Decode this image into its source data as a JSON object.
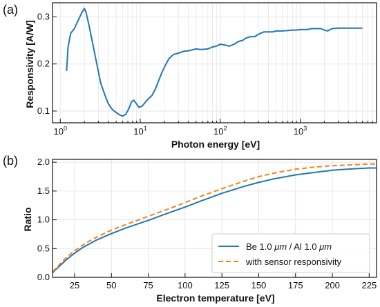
{
  "chart_data": [
    {
      "panel_label": "(a)",
      "type": "line",
      "xlabel": "Photon energy [eV]",
      "ylabel": "Responsivity [A/W]",
      "xscale": "log",
      "xlim": [
        0.8,
        9000
      ],
      "ylim": [
        0.075,
        0.33
      ],
      "grid": true,
      "x_ticks": [
        {
          "value": 1,
          "base": "10",
          "exp": "0"
        },
        {
          "value": 10,
          "base": "10",
          "exp": "1"
        },
        {
          "value": 100,
          "base": "10",
          "exp": "2"
        },
        {
          "value": 1000,
          "base": "10",
          "exp": "3"
        }
      ],
      "y_ticks": [
        {
          "value": 0.1,
          "label": "0.1"
        },
        {
          "value": 0.2,
          "label": "0.2"
        },
        {
          "value": 0.3,
          "label": "0.3"
        }
      ],
      "series": [
        {
          "color": "#1f77b4",
          "style": "solid",
          "x": [
            1.2,
            1.25,
            1.35,
            1.5,
            1.7,
            1.85,
            2.0,
            2.1,
            2.3,
            2.6,
            2.9,
            3.2,
            3.6,
            4.0,
            4.5,
            5.0,
            5.5,
            6.0,
            6.6,
            7.2,
            7.8,
            8.3,
            9.0,
            9.6,
            10.5,
            11.5,
            12.5,
            14.0,
            15.5,
            17.0,
            19.0,
            21.0,
            23.0,
            26.0,
            30.0,
            35.0,
            40.0,
            45.0,
            50.0,
            55.0,
            60.0,
            70.0,
            80.0,
            90.0,
            100.0,
            115.0,
            130.0,
            150.0,
            170.0,
            190.0,
            210.0,
            240.0,
            270.0,
            300.0,
            350.0,
            400.0,
            450.0,
            500.0,
            600.0,
            700.0,
            800.0,
            900.0,
            1000.0,
            1200.0,
            1400.0,
            1600.0,
            1800.0,
            2000.0,
            2200.0,
            2500.0,
            3000.0,
            4000.0,
            5000.0,
            6000.0
          ],
          "y": [
            0.185,
            0.235,
            0.265,
            0.275,
            0.295,
            0.308,
            0.318,
            0.31,
            0.28,
            0.235,
            0.195,
            0.16,
            0.135,
            0.115,
            0.103,
            0.097,
            0.092,
            0.089,
            0.093,
            0.105,
            0.12,
            0.123,
            0.115,
            0.108,
            0.11,
            0.118,
            0.125,
            0.133,
            0.147,
            0.165,
            0.185,
            0.2,
            0.212,
            0.22,
            0.223,
            0.227,
            0.228,
            0.23,
            0.232,
            0.231,
            0.231,
            0.232,
            0.236,
            0.238,
            0.242,
            0.24,
            0.238,
            0.242,
            0.248,
            0.25,
            0.255,
            0.258,
            0.258,
            0.263,
            0.268,
            0.268,
            0.268,
            0.27,
            0.27,
            0.271,
            0.272,
            0.272,
            0.273,
            0.273,
            0.275,
            0.275,
            0.275,
            0.272,
            0.27,
            0.275,
            0.276,
            0.276,
            0.276,
            0.276
          ]
        }
      ]
    },
    {
      "panel_label": "(b)",
      "type": "line",
      "xlabel": "Electron temperature [eV]",
      "ylabel": "Ratio",
      "xlim": [
        10,
        230
      ],
      "ylim": [
        0,
        2.05
      ],
      "grid": true,
      "legend_position": "bottom-right",
      "x_ticks": [
        {
          "value": 25,
          "label": "25"
        },
        {
          "value": 50,
          "label": "50"
        },
        {
          "value": 75,
          "label": "75"
        },
        {
          "value": 100,
          "label": "100"
        },
        {
          "value": 125,
          "label": "125"
        },
        {
          "value": 150,
          "label": "150"
        },
        {
          "value": 175,
          "label": "175"
        },
        {
          "value": 200,
          "label": "200"
        },
        {
          "value": 225,
          "label": "225"
        }
      ],
      "y_ticks": [
        {
          "value": 0.0,
          "label": "0.0"
        },
        {
          "value": 0.5,
          "label": "0.5"
        },
        {
          "value": 1.0,
          "label": "1.0"
        },
        {
          "value": 1.5,
          "label": "1.5"
        },
        {
          "value": 2.0,
          "label": "2.0"
        }
      ],
      "series": [
        {
          "legend_parts": [
            "Be 1.0 ",
            "μm",
            " / Al 1.0 ",
            "μm"
          ],
          "color": "#1f77b4",
          "style": "solid",
          "x": [
            10,
            12,
            15,
            20,
            25,
            30,
            35,
            40,
            50,
            60,
            75,
            90,
            100,
            110,
            125,
            140,
            150,
            160,
            175,
            190,
            200,
            210,
            225,
            230
          ],
          "y": [
            0.08,
            0.13,
            0.2,
            0.32,
            0.42,
            0.51,
            0.58,
            0.65,
            0.76,
            0.86,
            0.99,
            1.13,
            1.22,
            1.32,
            1.46,
            1.58,
            1.65,
            1.71,
            1.78,
            1.83,
            1.86,
            1.88,
            1.9,
            1.9
          ]
        },
        {
          "legend_parts": [
            "with sensor responsivity"
          ],
          "color": "#ff7f0e",
          "style": "dashed",
          "x": [
            10,
            12,
            15,
            20,
            25,
            30,
            35,
            40,
            50,
            60,
            75,
            90,
            100,
            110,
            125,
            140,
            150,
            160,
            175,
            190,
            200,
            210,
            225,
            230
          ],
          "y": [
            0.1,
            0.15,
            0.23,
            0.36,
            0.46,
            0.55,
            0.63,
            0.7,
            0.82,
            0.92,
            1.06,
            1.2,
            1.3,
            1.4,
            1.54,
            1.67,
            1.75,
            1.81,
            1.88,
            1.92,
            1.94,
            1.95,
            1.97,
            1.97
          ]
        }
      ]
    }
  ]
}
